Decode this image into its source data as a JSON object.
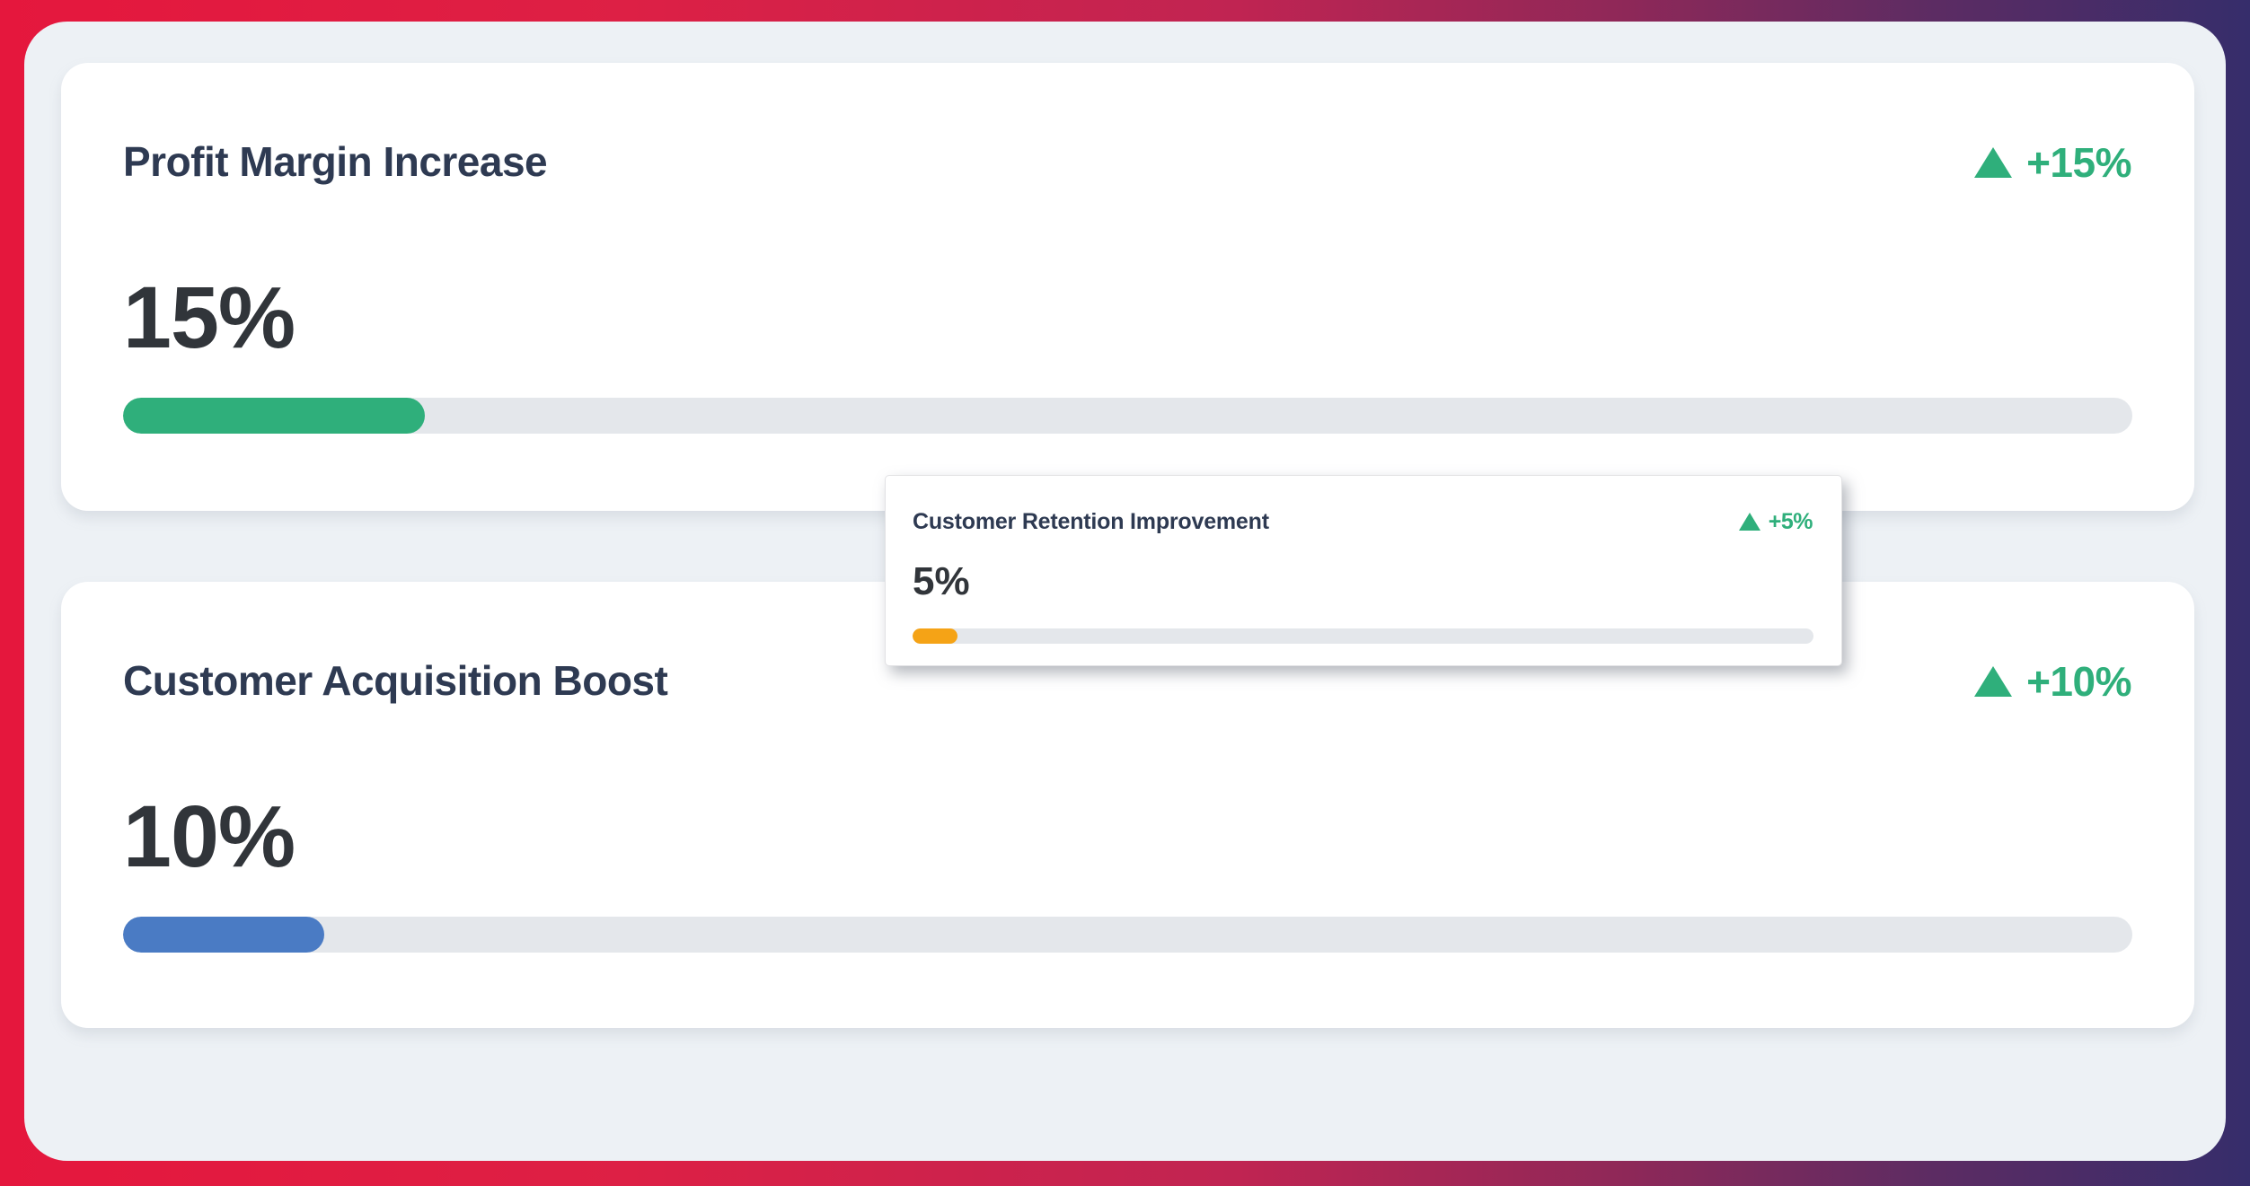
{
  "theme": {
    "gradient_left": "#e5173d",
    "gradient_right": "#362d6b",
    "panel_bg": "#edf1f5",
    "card_bg": "#ffffff",
    "title_color": "#2e3a52",
    "number_color": "#31353a",
    "positive_color": "#2faf7b",
    "track_color": "#e4e7eb"
  },
  "cards": [
    {
      "title": "Profit Margin Increase",
      "value": "15%",
      "change": "+15%",
      "bar": {
        "percent": 15,
        "color": "#2faf7b"
      }
    },
    {
      "title": "Customer Acquisition Boost",
      "value": "10%",
      "change": "+10%",
      "bar": {
        "percent": 10,
        "color": "#4a7bc4"
      }
    }
  ],
  "tooltip": {
    "title": "Customer Retention Improvement",
    "value": "5%",
    "change": "+5%",
    "bar": {
      "percent": 5,
      "color": "#f5a316"
    }
  }
}
